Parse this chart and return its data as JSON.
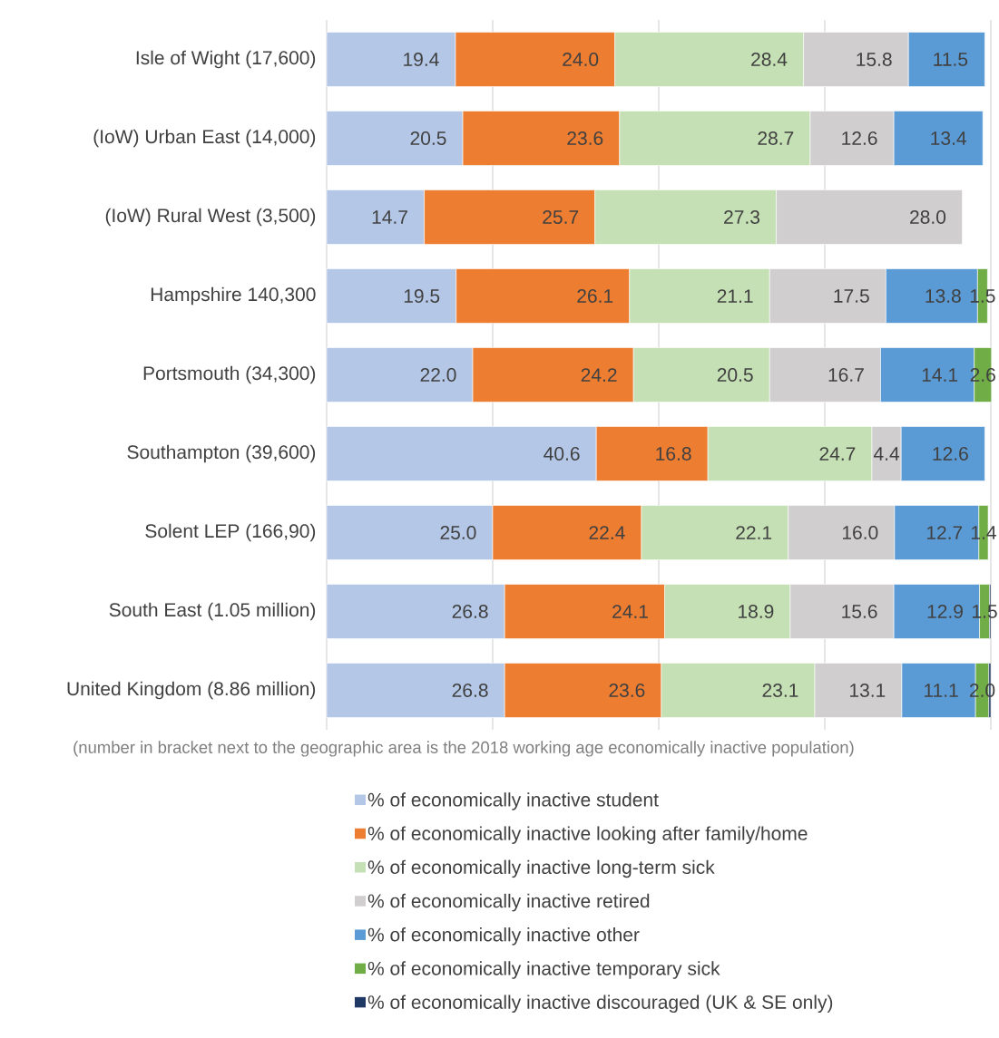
{
  "chart_data": {
    "type": "bar",
    "orientation": "horizontal",
    "stacked": true,
    "categories": [
      "Isle of Wight (17,600)",
      "(IoW)  Urban East (14,000)",
      "(IoW) Rural West (3,500)",
      "Hampshire 140,300",
      "Portsmouth (34,300)",
      "Southampton (39,600)",
      "Solent LEP (166,90)",
      "South East (1.05 million)",
      "United Kingdom (8.86 million)"
    ],
    "series": [
      {
        "name": "% of economically inactive student",
        "color": "#b4c7e7",
        "values": [
          19.4,
          20.5,
          14.7,
          19.5,
          22.0,
          40.6,
          25.0,
          26.8,
          26.8
        ],
        "value_labels": [
          "19.4",
          "20.5",
          "14.7",
          "19.5",
          "22.0",
          "40.6",
          "25.0",
          "26.8",
          "26.8"
        ]
      },
      {
        "name": "% of economically inactive looking after family/home",
        "color": "#ed7d31",
        "values": [
          24.0,
          23.6,
          25.7,
          26.1,
          24.2,
          16.8,
          22.4,
          24.1,
          23.6
        ],
        "value_labels": [
          "24.0",
          "23.6",
          "25.7",
          "26.1",
          "24.2",
          "16.8",
          "22.4",
          "24.1",
          "23.6"
        ]
      },
      {
        "name": "% of economically inactive long-term sick",
        "color": "#c5e0b4",
        "values": [
          28.4,
          28.7,
          27.3,
          21.1,
          20.5,
          24.7,
          22.1,
          18.9,
          23.1
        ],
        "value_labels": [
          "28.4",
          "28.7",
          "27.3",
          "21.1",
          "20.5",
          "24.7",
          "22.1",
          "18.9",
          "23.1"
        ]
      },
      {
        "name": "% of economically inactive retired",
        "color": "#d0cece",
        "values": [
          15.8,
          12.6,
          28.0,
          17.5,
          16.7,
          4.4,
          16.0,
          15.6,
          13.1
        ],
        "value_labels": [
          "15.8",
          "12.6",
          "28.0",
          "17.5",
          "16.7",
          "4.4",
          "16.0",
          "15.6",
          "13.1"
        ]
      },
      {
        "name": "% of economically inactive other",
        "color": "#5b9bd5",
        "values": [
          11.5,
          13.4,
          null,
          13.8,
          14.1,
          12.6,
          12.7,
          12.9,
          11.1
        ],
        "value_labels": [
          "11.5",
          "13.4",
          null,
          "13.8",
          "14.1",
          "12.6",
          "12.7",
          "12.9",
          "11.1"
        ]
      },
      {
        "name": "% of economically inactive temporary sick",
        "color": "#70ad47",
        "values": [
          null,
          null,
          null,
          1.5,
          2.6,
          null,
          1.4,
          1.5,
          2.0
        ],
        "value_labels": [
          null,
          null,
          null,
          "1.5",
          "2.6",
          null,
          "1.4",
          "1.5",
          "2.0"
        ]
      },
      {
        "name": "% of economically inactive discouraged (UK & SE only)",
        "color": "#1f3864",
        "values": [
          null,
          null,
          null,
          null,
          null,
          null,
          null,
          0.2,
          0.3
        ]
      }
    ],
    "xlim": [
      0,
      100
    ],
    "xticks": [
      {
        "value": 0,
        "label": null
      },
      {
        "value": 25,
        "label": null
      },
      {
        "value": 50,
        "label": null
      },
      {
        "value": 75,
        "label": null
      },
      {
        "value": 100,
        "label": null
      }
    ],
    "tick_labels": "y",
    "grid": "x",
    "legend": "bottom",
    "annotations": [
      "(number in bracket next to the geographic area is the 2018 working age economically inactive population)"
    ]
  }
}
